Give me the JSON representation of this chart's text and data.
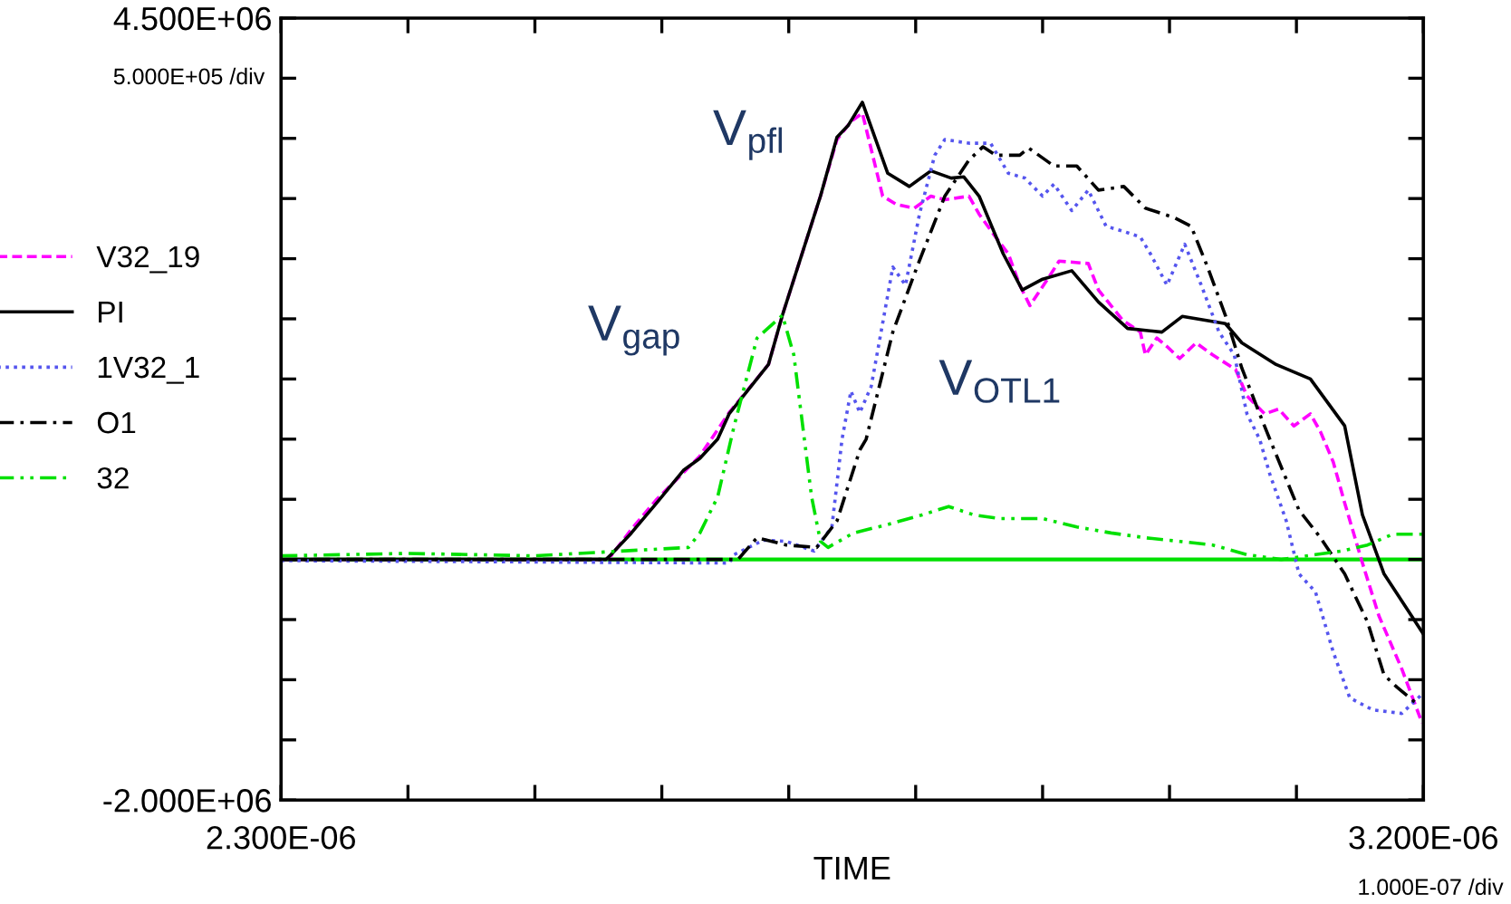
{
  "chart_data": {
    "type": "line",
    "xlabel": "TIME",
    "xlim": [
      2.3e-06,
      3.2e-06
    ],
    "ylim": [
      -2000000.0,
      4500000.0
    ],
    "xticks": [
      {
        "value": 2.3e-06,
        "label": "2.300E-06"
      },
      {
        "value": 2.4e-06,
        "label": null
      },
      {
        "value": 2.5e-06,
        "label": null
      },
      {
        "value": 2.6e-06,
        "label": null
      },
      {
        "value": 2.7e-06,
        "label": null
      },
      {
        "value": 2.8e-06,
        "label": null
      },
      {
        "value": 2.9e-06,
        "label": null
      },
      {
        "value": 3e-06,
        "label": null
      },
      {
        "value": 3.1e-06,
        "label": null
      },
      {
        "value": 3.2e-06,
        "label": "3.200E-06"
      }
    ],
    "yticks": [
      {
        "value": -2000000.0,
        "label": "-2.000E+06"
      },
      {
        "value": -1500000.0,
        "label": null
      },
      {
        "value": -1000000.0,
        "label": null
      },
      {
        "value": -500000.0,
        "label": null
      },
      {
        "value": 0,
        "label": null
      },
      {
        "value": 500000.0,
        "label": null
      },
      {
        "value": 1000000.0,
        "label": null
      },
      {
        "value": 1500000.0,
        "label": null
      },
      {
        "value": 2000000.0,
        "label": null
      },
      {
        "value": 2500000.0,
        "label": null
      },
      {
        "value": 3000000.0,
        "label": null
      },
      {
        "value": 3500000.0,
        "label": null
      },
      {
        "value": 4000000.0,
        "label": null
      },
      {
        "value": 4500000.0,
        "label": "4.500E+06"
      }
    ],
    "grid": false,
    "legend": "left",
    "ref_lines": [
      {
        "axis": "y",
        "value": 0,
        "color": "#00e000"
      }
    ],
    "annotations": [
      "5.000E+05 /div",
      "1.000E-07 /div",
      "V$_{pfl}$",
      "V$_{gap}$",
      "V$_{OTL1}$"
    ],
    "series": [
      {
        "name": "V32_19",
        "color": "#ff00ff",
        "line_style": "dashed",
        "x": [
          2.3e-06,
          2.556e-06,
          2.56e-06,
          2.576e-06,
          2.596e-06,
          2.617e-06,
          2.63e-06,
          2.653e-06,
          2.684e-06,
          2.695e-06,
          2.725e-06,
          2.738e-06,
          2.749e-06,
          2.758e-06,
          2.774e-06,
          2.785e-06,
          2.799e-06,
          2.812e-06,
          2.823e-06,
          2.842e-06,
          2.85e-06,
          2.863e-06,
          2.873e-06,
          2.882e-06,
          2.89e-06,
          2.904e-06,
          2.913e-06,
          2.936e-06,
          2.944e-06,
          2.963e-06,
          2.977e-06,
          2.981e-06,
          2.99e-06,
          2.998e-06,
          3.008e-06,
          3.021e-06,
          3.034e-06,
          3.052e-06,
          3.061e-06,
          3.075e-06,
          3.086e-06,
          3.098e-06,
          3.111e-06,
          3.119e-06,
          3.129e-06,
          3.138e-06,
          3.152e-06,
          3.165e-06,
          3.183e-06,
          3.199e-06
        ],
        "values": [
          0,
          0,
          30000.0,
          250000.0,
          500000.0,
          720000.0,
          860000.0,
          1220000.0,
          1620000.0,
          2030000.0,
          3020000.0,
          3490000.0,
          3640000.0,
          3710000.0,
          3020000.0,
          2950000.0,
          2920000.0,
          3020000.0,
          2990000.0,
          3020000.0,
          2870000.0,
          2680000.0,
          2540000.0,
          2280000.0,
          2110000.0,
          2330000.0,
          2480000.0,
          2460000.0,
          2240000.0,
          1990000.0,
          1890000.0,
          1700000.0,
          1840000.0,
          1770000.0,
          1670000.0,
          1800000.0,
          1700000.0,
          1580000.0,
          1360000.0,
          1210000.0,
          1250000.0,
          1110000.0,
          1210000.0,
          1060000.0,
          810000.0,
          470000.0,
          -30000.0,
          -470000.0,
          -910000.0,
          -1360000.0
        ]
      },
      {
        "name": "PI",
        "color": "#000000",
        "line_style": "solid",
        "x": [
          2.3e-06,
          2.556e-06,
          2.56e-06,
          2.576e-06,
          2.596e-06,
          2.617e-06,
          2.63e-06,
          2.644e-06,
          2.653e-06,
          2.684e-06,
          2.695e-06,
          2.725e-06,
          2.738e-06,
          2.747e-06,
          2.758e-06,
          2.778e-06,
          2.795e-06,
          2.812e-06,
          2.828e-06,
          2.838e-06,
          2.85e-06,
          2.869e-06,
          2.884e-06,
          2.9e-06,
          2.923e-06,
          2.944e-06,
          2.967e-06,
          2.994e-06,
          3.01e-06,
          3.044e-06,
          3.057e-06,
          3.084e-06,
          3.111e-06,
          3.138e-06,
          3.152e-06,
          3.169e-06,
          3.187e-06,
          3.2e-06
        ],
        "values": [
          0,
          0,
          40000.0,
          220000.0,
          470000.0,
          740000.0,
          840000.0,
          1000000.0,
          1210000.0,
          1620000.0,
          2030000.0,
          3020000.0,
          3510000.0,
          3610000.0,
          3800000.0,
          3210000.0,
          3100000.0,
          3230000.0,
          3170000.0,
          3180000.0,
          3020000.0,
          2540000.0,
          2240000.0,
          2330000.0,
          2400000.0,
          2140000.0,
          1920000.0,
          1890000.0,
          2020000.0,
          1960000.0,
          1800000.0,
          1620000.0,
          1500000.0,
          1110000.0,
          370000.0,
          -120000.0,
          -410000.0,
          -620000.0
        ]
      },
      {
        "name": "1V32_1",
        "color": "#5555ee",
        "line_style": "dotted",
        "x": [
          2.3e-06,
          2.653e-06,
          2.657e-06,
          2.68e-06,
          2.698e-06,
          2.72e-06,
          2.734e-06,
          2.742e-06,
          2.749e-06,
          2.756e-06,
          2.765e-06,
          2.782e-06,
          2.792e-06,
          2.803e-06,
          2.815e-06,
          2.823e-06,
          2.842e-06,
          2.859e-06,
          2.873e-06,
          2.886e-06,
          2.9e-06,
          2.909e-06,
          2.923e-06,
          2.936e-06,
          2.95e-06,
          2.963e-06,
          2.977e-06,
          2.985e-06,
          2.998e-06,
          3.012e-06,
          3.025e-06,
          3.039e-06,
          3.051e-06,
          3.061e-06,
          3.071e-06,
          3.079e-06,
          3.092e-06,
          3.102e-06,
          3.115e-06,
          3.129e-06,
          3.142e-06,
          3.16e-06,
          3.183e-06,
          3.2e-06
        ],
        "values": [
          -10000.0,
          -30000.0,
          40000.0,
          160000.0,
          150000.0,
          70000.0,
          270000.0,
          1000000.0,
          1400000.0,
          1220000.0,
          1440000.0,
          2430000.0,
          2280000.0,
          2870000.0,
          3360000.0,
          3490000.0,
          3460000.0,
          3460000.0,
          3210000.0,
          3170000.0,
          3020000.0,
          3120000.0,
          2900000.0,
          3070000.0,
          2770000.0,
          2730000.0,
          2680000.0,
          2540000.0,
          2280000.0,
          2620000.0,
          2280000.0,
          1890000.0,
          1700000.0,
          1210000.0,
          1000000.0,
          710000.0,
          320000.0,
          -120000.0,
          -270000.0,
          -770000.0,
          -1150000.0,
          -1250000.0,
          -1280000.0,
          -1110000.0
        ]
      },
      {
        "name": "O1",
        "color": "#000000",
        "line_style": "dashdot",
        "x": [
          2.3e-06,
          2.66e-06,
          2.675e-06,
          2.698e-06,
          2.722e-06,
          2.738e-06,
          2.756e-06,
          2.761e-06,
          2.782e-06,
          2.801e-06,
          2.823e-06,
          2.842e-06,
          2.853e-06,
          2.863e-06,
          2.882e-06,
          2.889e-06,
          2.909e-06,
          2.927e-06,
          2.944e-06,
          2.964e-06,
          2.981e-06,
          3.004e-06,
          3.017e-06,
          3.03e-06,
          3.044e-06,
          3.057e-06,
          3.071e-06,
          3.079e-06,
          3.102e-06,
          3.119e-06,
          3.138e-06,
          3.156e-06,
          3.169e-06,
          3.179e-06,
          3.196e-06
        ],
        "values": [
          0,
          0,
          180000.0,
          120000.0,
          100000.0,
          320000.0,
          910000.0,
          1000000.0,
          1890000.0,
          2430000.0,
          3020000.0,
          3320000.0,
          3430000.0,
          3360000.0,
          3360000.0,
          3420000.0,
          3270000.0,
          3270000.0,
          3070000.0,
          3100000.0,
          2920000.0,
          2840000.0,
          2770000.0,
          2430000.0,
          2030000.0,
          1590000.0,
          1210000.0,
          1000000.0,
          410000.0,
          180000.0,
          -120000.0,
          -520000.0,
          -960000.0,
          -1060000.0,
          -1210000.0
        ]
      },
      {
        "name": "32",
        "color": "#00e000",
        "line_style": "dashdotdot",
        "x": [
          2.3e-06,
          2.4e-06,
          2.5e-06,
          2.621e-06,
          2.63e-06,
          2.644e-06,
          2.657e-06,
          2.675e-06,
          2.695e-06,
          2.704e-06,
          2.711e-06,
          2.718e-06,
          2.725e-06,
          2.731e-06,
          2.751e-06,
          2.778e-06,
          2.805e-06,
          2.826e-06,
          2.846e-06,
          2.866e-06,
          2.9e-06,
          2.927e-06,
          2.954e-06,
          2.981e-06,
          3.008e-06,
          3.034e-06,
          3.061e-06,
          3.088e-06,
          3.115e-06,
          3.136e-06,
          3.156e-06,
          3.176e-06,
          3.2e-06
        ],
        "values": [
          30000.0,
          50000.0,
          30000.0,
          100000.0,
          220000.0,
          520000.0,
          1110000.0,
          1840000.0,
          2030000.0,
          1700000.0,
          1110000.0,
          520000.0,
          150000.0,
          100000.0,
          220000.0,
          290000.0,
          370000.0,
          440000.0,
          370000.0,
          340000.0,
          340000.0,
          270000.0,
          220000.0,
          180000.0,
          150000.0,
          120000.0,
          40000.0,
          0,
          40000.0,
          70000.0,
          120000.0,
          210000.0,
          210000.0
        ]
      }
    ]
  }
}
